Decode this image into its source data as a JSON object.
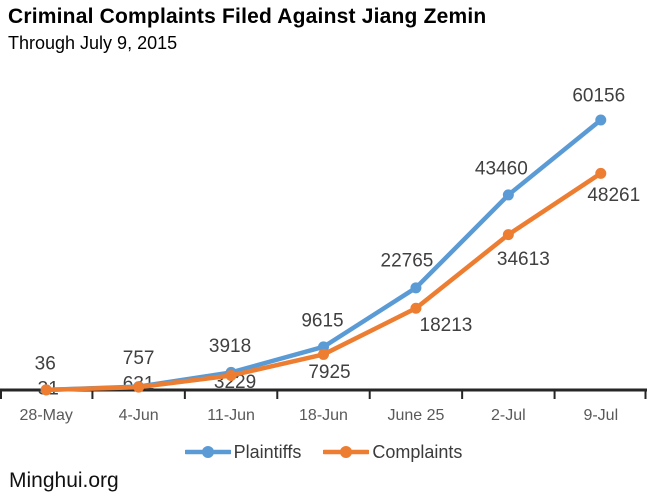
{
  "title": "Criminal Complaints Filed Against Jiang Zemin",
  "subtitle": "Through July 9, 2015",
  "footer": "Minghui.org",
  "colors": {
    "plaintiffs": "#5B9BD5",
    "complaints": "#ED7D31",
    "axis_line": "#262626",
    "axis_label": "#595959",
    "data_label": "#404040",
    "background": "#ffffff"
  },
  "chart_data": {
    "type": "line",
    "title": "Criminal Complaints Filed Against Jiang Zemin",
    "subtitle": "Through July 9, 2015",
    "categories": [
      "28-May",
      "4-Jun",
      "11-Jun",
      "18-Jun",
      "June 25",
      "2-Jul",
      "9-Jul"
    ],
    "series": [
      {
        "name": "Plaintiffs",
        "color": "#5B9BD5",
        "values": [
          36,
          757,
          3918,
          9615,
          22765,
          43460,
          60156
        ]
      },
      {
        "name": "Complaints",
        "color": "#ED7D31",
        "values": [
          31,
          631,
          3229,
          7925,
          18213,
          34613,
          48261
        ]
      }
    ],
    "xlabel": "",
    "ylabel": "",
    "ylim": [
      0,
      60156
    ],
    "grid": false,
    "y_axis_shown": false,
    "data_labels": true,
    "markers": "circle",
    "legend_position": "bottom",
    "source": "Minghui.org"
  }
}
